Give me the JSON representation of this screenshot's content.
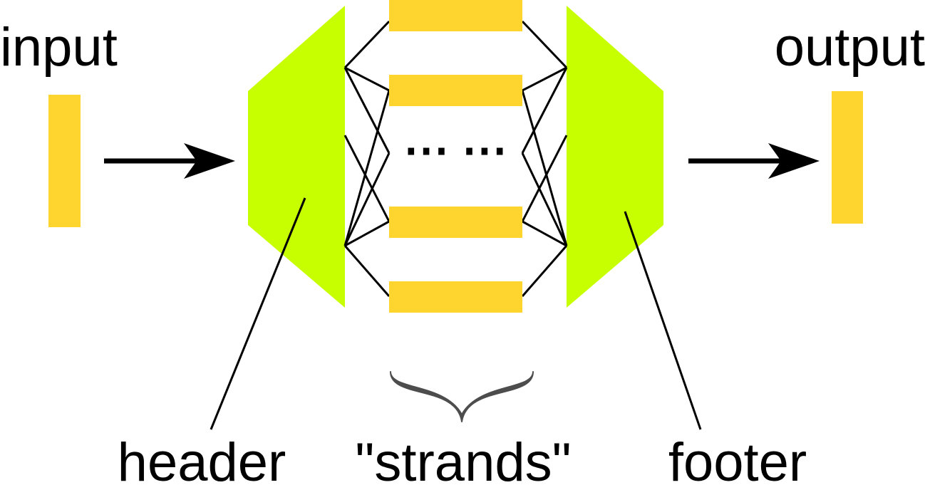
{
  "labels": {
    "input": "input",
    "output": "output",
    "header": "header",
    "strands": "\"strands\"",
    "footer": "footer"
  },
  "strand_ellipsis": "⋯  ⋯",
  "strand_count_visible": 4,
  "colors": {
    "block": "#fed52f",
    "panel": "#c8ff00",
    "line": "#000000",
    "brace": "#4d4d4d",
    "background": "#ffffff"
  }
}
